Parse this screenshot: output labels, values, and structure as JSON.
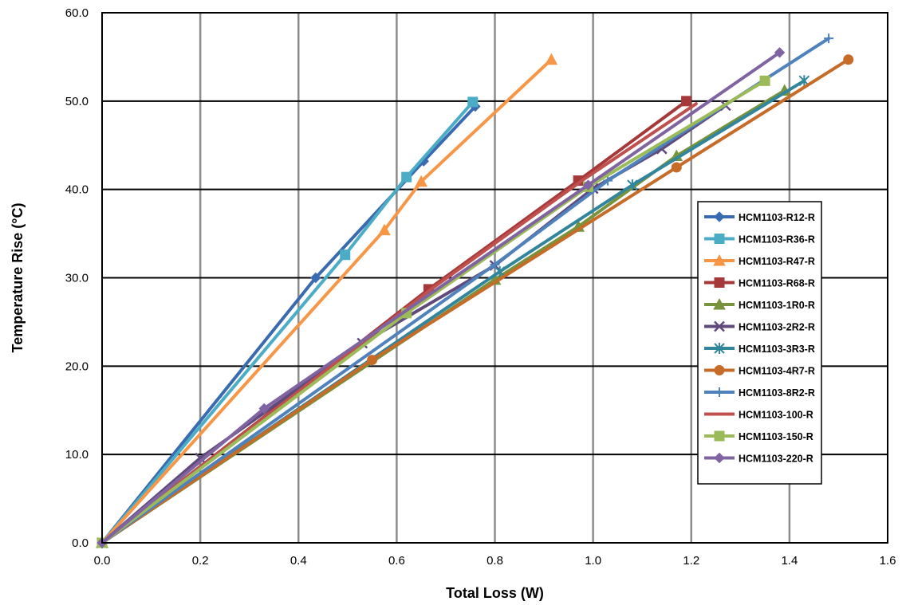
{
  "chart_data": {
    "type": "line",
    "title": "",
    "xlabel": "Total Loss (W)",
    "ylabel": "Temperature Rise (°C)",
    "xlim": [
      0,
      1.6
    ],
    "ylim": [
      0,
      60
    ],
    "x_ticks": [
      "0.0",
      "0.2",
      "0.4",
      "0.6",
      "0.8",
      "1.0",
      "1.2",
      "1.4",
      "1.6"
    ],
    "y_ticks": [
      "0.0",
      "10.0",
      "20.0",
      "30.0",
      "40.0",
      "50.0",
      "60.0"
    ],
    "vertical_grid": true,
    "horizontal_grid": true,
    "legend_position": "right",
    "series": [
      {
        "name": "HCM1103-R12-R",
        "color": "#3A6AAF",
        "marker": "diamond",
        "x": [
          0,
          0.435,
          0.655,
          0.76
        ],
        "y": [
          0,
          30.0,
          43.2,
          49.4
        ]
      },
      {
        "name": "HCM1103-R36-R",
        "color": "#4BACC6",
        "marker": "square",
        "x": [
          0,
          0.495,
          0.62,
          0.755
        ],
        "y": [
          0,
          32.6,
          41.4,
          49.9
        ]
      },
      {
        "name": "HCM1103-R47-R",
        "color": "#F79646",
        "marker": "triangle",
        "x": [
          0,
          0.575,
          0.65,
          0.915
        ],
        "y": [
          0,
          35.4,
          40.9,
          54.7
        ]
      },
      {
        "name": "HCM1103-R68-R",
        "color": "#A5393A",
        "marker": "square",
        "x": [
          0,
          0.665,
          0.97,
          1.19
        ],
        "y": [
          0,
          28.7,
          41.0,
          50.0
        ]
      },
      {
        "name": "HCM1103-1R0-R",
        "color": "#77933C",
        "marker": "triangle",
        "x": [
          0,
          0.8,
          0.97,
          1.17,
          1.39
        ],
        "y": [
          0,
          29.8,
          35.8,
          43.8,
          51.2
        ]
      },
      {
        "name": "HCM1103-2R2-R",
        "color": "#604A7B",
        "marker": "x",
        "x": [
          0,
          0.2,
          0.53,
          0.8,
          1.0,
          1.14,
          1.27
        ],
        "y": [
          0,
          9.6,
          22.6,
          31.4,
          40.1,
          44.6,
          49.5
        ]
      },
      {
        "name": "HCM1103-3R3-R",
        "color": "#31859C",
        "marker": "star",
        "x": [
          0,
          0.81,
          1.08,
          1.43
        ],
        "y": [
          0,
          30.7,
          40.5,
          52.3
        ]
      },
      {
        "name": "HCM1103-4R7-R",
        "color": "#C66B28",
        "marker": "circle",
        "x": [
          0,
          0.55,
          1.17,
          1.52
        ],
        "y": [
          0,
          20.7,
          42.5,
          54.7
        ]
      },
      {
        "name": "HCM1103-8R2-R",
        "color": "#4F81BD",
        "marker": "plus",
        "x": [
          0,
          0.8,
          1.03,
          1.48
        ],
        "y": [
          0,
          31.5,
          41.0,
          57.1
        ]
      },
      {
        "name": "HCM1103-100-R",
        "color": "#C0504D",
        "marker": "none",
        "x": [
          0,
          0.67,
          0.98,
          1.21
        ],
        "y": [
          0,
          28.7,
          41.1,
          49.7
        ]
      },
      {
        "name": "HCM1103-150-R",
        "color": "#9BBB59",
        "marker": "square",
        "x": [
          0,
          0.62,
          0.99,
          1.35
        ],
        "y": [
          0,
          26.0,
          40.3,
          52.3
        ]
      },
      {
        "name": "HCM1103-220-R",
        "color": "#8064A2",
        "marker": "diamond",
        "x": [
          0,
          0.33,
          0.99,
          1.38
        ],
        "y": [
          0,
          15.2,
          40.5,
          55.5
        ]
      }
    ]
  }
}
